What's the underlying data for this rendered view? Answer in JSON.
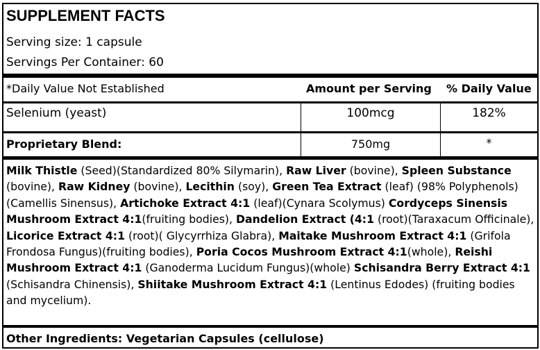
{
  "title": "SUPPLEMENT FACTS",
  "serving_size": "Serving size:  1 capsule",
  "servings_per_container": "Servings Per Container: 60",
  "header": {
    "note": "*Daily Value Not Established",
    "amount": "Amount per Serving",
    "dv": "% Daily Value"
  },
  "rows": [
    {
      "name": "Selenium (yeast)",
      "amount": "100mcg",
      "dv": "182%"
    },
    {
      "name": "Proprietary Blend:",
      "amount": "750mg",
      "dv": "*"
    }
  ],
  "blend": [
    {
      "b": "Milk Thistle",
      "t": " (Seed)(Standardized 80% Silymarin), "
    },
    {
      "b": "Raw Liver",
      "t": " (bovine), "
    },
    {
      "b": "Spleen Substance",
      "t": " (bovine), "
    },
    {
      "b": "Raw Kidney",
      "t": " (bovine), "
    },
    {
      "b": "Lecithin",
      "t": " (soy), "
    },
    {
      "b": "Green Tea Extract",
      "t": " (leaf) (98% Polyphenols)(Camellis Sinensus), "
    },
    {
      "b": "Artichoke Extract 4:1",
      "t": " (leaf)(Cynara Scolymus) "
    },
    {
      "b": "Cordyceps Sinensis Mushroom Extract 4:1",
      "t": "(fruiting bodies), "
    },
    {
      "b": "Dandelion Extract (4:1",
      "t": " (root)(Taraxacum Officinale), "
    },
    {
      "b": "Licorice Extract 4:1",
      "t": " (root)( Glycyrrhiza Glabra), "
    },
    {
      "b": "Maitake Mushroom Extract 4:1",
      "t": " (Grifola Frondosa Fungus)(fruiting bodies), "
    },
    {
      "b": "Poria Cocos Mushroom Extract 4:1",
      "t": "(whole), "
    },
    {
      "b": "Reishi Mushroom Extract 4:1",
      "t": " (Ganoderma Lucidum Fungus)(whole) "
    },
    {
      "b": "Schisandra Berry Extract 4:1",
      "t": " (Schisandra Chinensis), "
    },
    {
      "b": "Shiitake Mushroom Extract 4:1",
      "t": " (Lentinus Edodes) (fruiting bodies and mycelium)."
    }
  ],
  "other_ingredients": "Other Ingredients: Vegetarian Capsules (cellulose)"
}
